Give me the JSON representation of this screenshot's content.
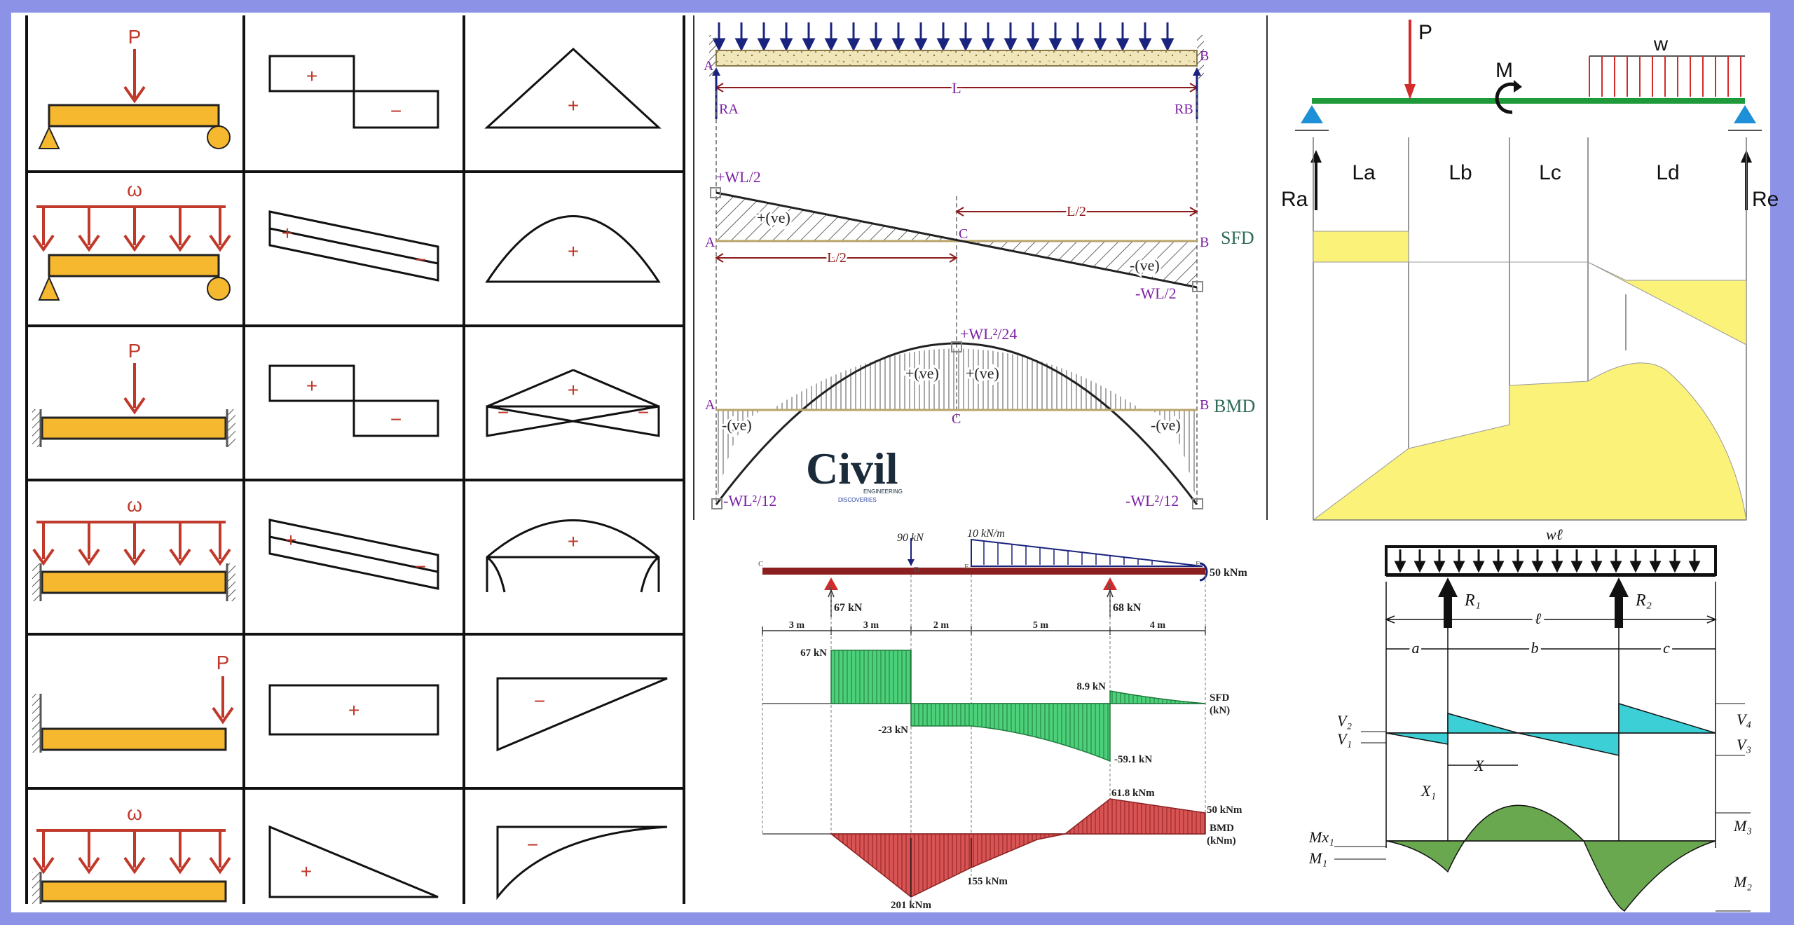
{
  "left_table": {
    "rows": [
      {
        "load": "P",
        "sfd_signs": [
          "+",
          "−"
        ],
        "bmd_signs": [
          "+"
        ]
      },
      {
        "load": "ω",
        "sfd_signs": [
          "+",
          "−"
        ],
        "bmd_signs": [
          "+"
        ]
      },
      {
        "load": "P",
        "sfd_signs": [
          "+",
          "−"
        ],
        "bmd_signs": [
          "+",
          "−",
          "−"
        ]
      },
      {
        "load": "ω",
        "sfd_signs": [
          "+",
          "−"
        ],
        "bmd_signs": [
          "+"
        ]
      },
      {
        "load": "P",
        "sfd_signs": [
          "+"
        ],
        "bmd_signs": [
          "−"
        ]
      },
      {
        "load": "ω",
        "sfd_signs": [
          "+"
        ],
        "bmd_signs": [
          "−"
        ]
      }
    ]
  },
  "fixed_beam": {
    "left_end": "A",
    "right_end": "B",
    "span": "L",
    "left_reaction": "RA",
    "right_reaction": "RB",
    "sfd": {
      "top_left": "+WL/2",
      "bottom_right": "-WL/2",
      "pos": "+(ve)",
      "neg": "-(ve)",
      "half_left": "L/2",
      "half_right": "L/2",
      "mid": "C",
      "a": "A",
      "b": "B",
      "tag": "SFD"
    },
    "bmd": {
      "peak": "+WL²/24",
      "pos_left": "+(ve)",
      "pos_right": "+(ve)",
      "neg_left": "-(ve)",
      "neg_right": "-(ve)",
      "end_left": "-WL²/12",
      "end_right": "-WL²/12",
      "mid": "C",
      "a": "A",
      "b": "B",
      "tag": "BMD"
    },
    "logo": {
      "word": "Civil",
      "sub1": "ENGINEERING",
      "sub2": "DISCOVERIES"
    }
  },
  "general_beam": {
    "point_load": "P",
    "moment": "M",
    "udl": "w",
    "left_reaction": "Ra",
    "right_reaction": "Re",
    "segments": [
      "La",
      "Lb",
      "Lc",
      "Ld"
    ],
    "colors": {
      "beam": "#1f9a3a",
      "load": "#d42a2a",
      "support": "#1e90d8",
      "fill": "#fbf27a"
    }
  },
  "overhang_beam": {
    "point_load": "90 kN",
    "udl": "10 kN/m",
    "end_moment": "50 kNm",
    "points": [
      "C",
      "A",
      "D",
      "E",
      "B",
      "F"
    ],
    "reactions": [
      "67 kN",
      "68 kN"
    ],
    "spans": [
      "3 m",
      "3 m",
      "2 m",
      "5 m",
      "4 m"
    ],
    "sfd": {
      "labels": [
        "67 kN",
        "-23 kN",
        "8.9 kN",
        "-59.1 kN"
      ],
      "tag": "SFD",
      "unit": "(kN)"
    },
    "bmd": {
      "labels": [
        "61.8 kNm",
        "50 kNm",
        "201 kNm",
        "155 kNm"
      ],
      "tag": "BMD",
      "unit": "(kNm)"
    },
    "colors": {
      "beam": "#8b1e1e",
      "sfd": "#4cd07a",
      "bmd": "#d85454"
    }
  },
  "double_overhang": {
    "load": "wℓ",
    "r1": "R₁",
    "r2": "R₂",
    "span": "ℓ",
    "parts": [
      "a",
      "b",
      "c"
    ],
    "shear": [
      "V₂",
      "V₁",
      "V₄",
      "V₃"
    ],
    "dist": [
      "X₁",
      "X"
    ],
    "moment": [
      "Mx₁",
      "M₁",
      "M₃",
      "M₂"
    ],
    "colors": {
      "sfd": "#3ccfd6",
      "bmd": "#6aa84f"
    }
  }
}
